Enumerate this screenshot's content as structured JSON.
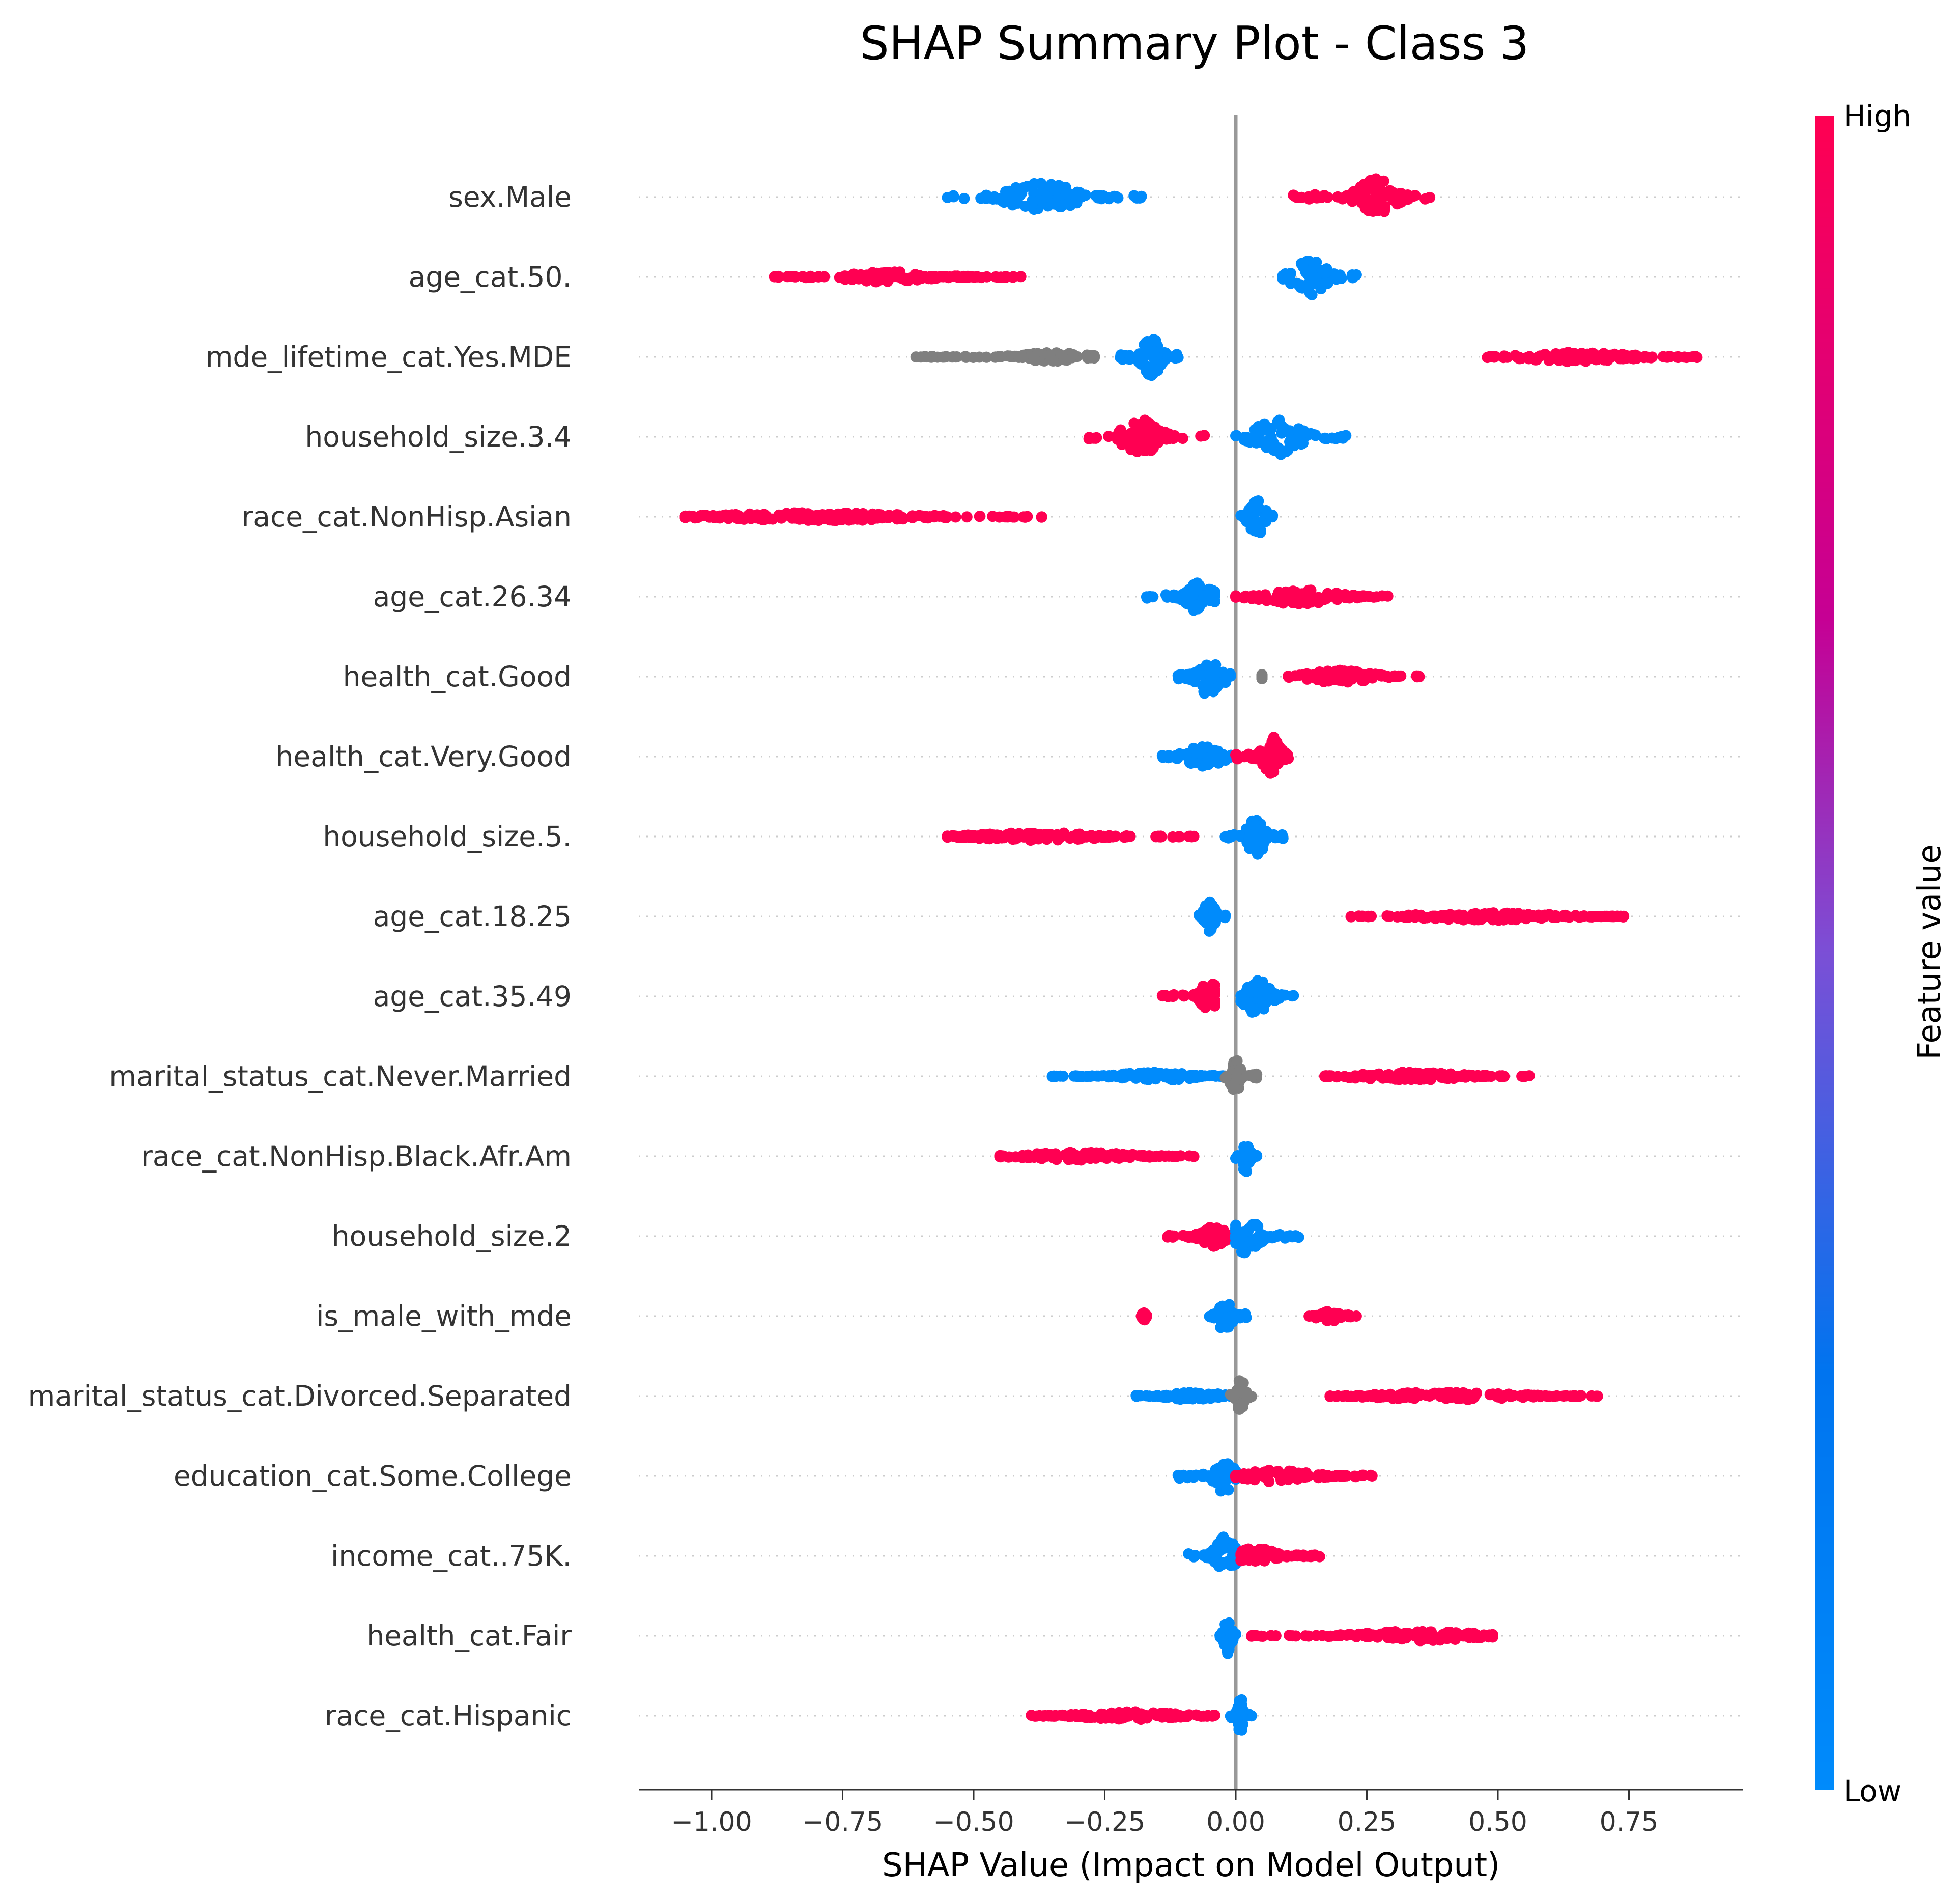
{
  "chart_data": {
    "type": "scatter",
    "subtype": "shap-beeswarm",
    "title": "SHAP Summary Plot - Class 3",
    "xlabel": "SHAP Value (Impact on Model Output)",
    "xlim": [
      -1.15,
      0.97
    ],
    "xticks": [
      -1.0,
      -0.75,
      -0.5,
      -0.25,
      0.0,
      0.25,
      0.5,
      0.75
    ],
    "xtick_labels": [
      "−1.00",
      "−0.75",
      "−0.50",
      "−0.25",
      "0.00",
      "0.25",
      "0.50",
      "0.75"
    ],
    "grid": false,
    "colorbar": {
      "label": "Feature value",
      "high": "High",
      "low": "Low",
      "high_color": "#ff0052",
      "low_color": "#008bfb",
      "gray_color": "#7f7f7f"
    },
    "features": [
      {
        "name": "sex.Male",
        "groups": [
          {
            "value": "low",
            "xmin": -0.55,
            "xmax": -0.18,
            "peak": -0.37,
            "spread": 0.055,
            "width": 0.35
          },
          {
            "value": "high",
            "xmin": 0.11,
            "xmax": 0.37,
            "peak": 0.27,
            "spread": 0.03,
            "width": 0.48
          }
        ]
      },
      {
        "name": "age_cat.50.",
        "groups": [
          {
            "value": "high",
            "xmin": -0.88,
            "xmax": -0.41,
            "peak": -0.66,
            "spread": 0.07,
            "width": 0.13
          },
          {
            "value": "low",
            "xmin": 0.09,
            "xmax": 0.23,
            "peak": 0.14,
            "spread": 0.025,
            "width": 0.5
          }
        ]
      },
      {
        "name": "mde_lifetime_cat.Yes.MDE",
        "groups": [
          {
            "value": "gray",
            "xmin": -0.61,
            "xmax": -0.27,
            "peak": -0.35,
            "spread": 0.05,
            "width": 0.11
          },
          {
            "value": "low",
            "xmin": -0.22,
            "xmax": -0.11,
            "peak": -0.16,
            "spread": 0.015,
            "width": 0.5
          },
          {
            "value": "high",
            "xmin": 0.48,
            "xmax": 0.88,
            "peak": 0.65,
            "spread": 0.08,
            "width": 0.12
          }
        ]
      },
      {
        "name": "household_size.3.4",
        "groups": [
          {
            "value": "high",
            "xmin": -0.28,
            "xmax": -0.06,
            "peak": -0.18,
            "spread": 0.03,
            "width": 0.43
          },
          {
            "value": "low",
            "xmin": 0.0,
            "xmax": 0.21,
            "peak": 0.08,
            "spread": 0.035,
            "width": 0.45
          }
        ]
      },
      {
        "name": "race_cat.NonHisp.Asian",
        "groups": [
          {
            "value": "high",
            "xmin": -1.05,
            "xmax": -0.37,
            "peak": -0.8,
            "spread": 0.15,
            "width": 0.1
          },
          {
            "value": "low",
            "xmin": 0.01,
            "xmax": 0.07,
            "peak": 0.04,
            "spread": 0.012,
            "width": 0.5
          }
        ]
      },
      {
        "name": "age_cat.26.34",
        "groups": [
          {
            "value": "low",
            "xmin": -0.17,
            "xmax": -0.04,
            "peak": -0.07,
            "spread": 0.02,
            "width": 0.42
          },
          {
            "value": "high",
            "xmin": 0.0,
            "xmax": 0.29,
            "peak": 0.12,
            "spread": 0.06,
            "width": 0.18
          }
        ]
      },
      {
        "name": "health_cat.Good",
        "groups": [
          {
            "value": "low",
            "xmin": -0.11,
            "xmax": -0.01,
            "peak": -0.05,
            "spread": 0.02,
            "width": 0.5
          },
          {
            "value": "gray",
            "xmin": 0.05,
            "xmax": 0.05,
            "peak": 0.05,
            "spread": 0.001,
            "width": 0.05
          },
          {
            "value": "high",
            "xmin": 0.1,
            "xmax": 0.35,
            "peak": 0.2,
            "spread": 0.05,
            "width": 0.16
          }
        ]
      },
      {
        "name": "health_cat.Very.Good",
        "groups": [
          {
            "value": "low",
            "xmin": -0.14,
            "xmax": 0.0,
            "peak": -0.06,
            "spread": 0.03,
            "width": 0.26
          },
          {
            "value": "high",
            "xmin": 0.0,
            "xmax": 0.1,
            "peak": 0.07,
            "spread": 0.015,
            "width": 0.5
          }
        ]
      },
      {
        "name": "household_size.5.",
        "groups": [
          {
            "value": "high",
            "xmin": -0.55,
            "xmax": -0.08,
            "peak": -0.38,
            "spread": 0.09,
            "width": 0.1
          },
          {
            "value": "low",
            "xmin": -0.02,
            "xmax": 0.09,
            "peak": 0.04,
            "spread": 0.015,
            "width": 0.47
          }
        ]
      },
      {
        "name": "age_cat.18.25",
        "groups": [
          {
            "value": "low",
            "xmin": -0.07,
            "xmax": -0.02,
            "peak": -0.05,
            "spread": 0.008,
            "width": 0.42
          },
          {
            "value": "high",
            "xmin": 0.22,
            "xmax": 0.74,
            "peak": 0.48,
            "spread": 0.1,
            "width": 0.1
          }
        ]
      },
      {
        "name": "age_cat.35.49",
        "groups": [
          {
            "value": "high",
            "xmin": -0.14,
            "xmax": -0.04,
            "peak": -0.05,
            "spread": 0.012,
            "width": 0.43
          },
          {
            "value": "low",
            "xmin": 0.01,
            "xmax": 0.11,
            "peak": 0.04,
            "spread": 0.02,
            "width": 0.45
          }
        ]
      },
      {
        "name": "marital_status_cat.Never.Married",
        "groups": [
          {
            "value": "low",
            "xmin": -0.35,
            "xmax": -0.02,
            "peak": -0.15,
            "spread": 0.06,
            "width": 0.1
          },
          {
            "value": "gray",
            "xmin": -0.02,
            "xmax": 0.04,
            "peak": 0.0,
            "spread": 0.008,
            "width": 0.45
          },
          {
            "value": "high",
            "xmin": 0.17,
            "xmax": 0.56,
            "peak": 0.33,
            "spread": 0.08,
            "width": 0.1
          }
        ]
      },
      {
        "name": "race_cat.NonHisp.Black.Afr.Am",
        "groups": [
          {
            "value": "high",
            "xmin": -0.45,
            "xmax": -0.08,
            "peak": -0.3,
            "spread": 0.08,
            "width": 0.1
          },
          {
            "value": "low",
            "xmin": 0.0,
            "xmax": 0.04,
            "peak": 0.02,
            "spread": 0.006,
            "width": 0.45
          }
        ]
      },
      {
        "name": "household_size.2",
        "groups": [
          {
            "value": "high",
            "xmin": -0.13,
            "xmax": -0.01,
            "peak": -0.04,
            "spread": 0.02,
            "width": 0.26
          },
          {
            "value": "low",
            "xmin": 0.0,
            "xmax": 0.12,
            "peak": 0.02,
            "spread": 0.02,
            "width": 0.45
          }
        ]
      },
      {
        "name": "is_male_with_mde",
        "groups": [
          {
            "value": "high",
            "xmin": -0.18,
            "xmax": -0.17,
            "peak": -0.175,
            "spread": 0.003,
            "width": 0.1
          },
          {
            "value": "low",
            "xmin": -0.05,
            "xmax": 0.02,
            "peak": -0.02,
            "spread": 0.01,
            "width": 0.45
          },
          {
            "value": "high",
            "xmin": 0.14,
            "xmax": 0.23,
            "peak": 0.18,
            "spread": 0.02,
            "width": 0.12
          }
        ]
      },
      {
        "name": "marital_status_cat.Divorced.Separated",
        "groups": [
          {
            "value": "low",
            "xmin": -0.19,
            "xmax": -0.01,
            "peak": -0.08,
            "spread": 0.04,
            "width": 0.1
          },
          {
            "value": "gray",
            "xmin": -0.01,
            "xmax": 0.03,
            "peak": 0.01,
            "spread": 0.006,
            "width": 0.45
          },
          {
            "value": "high",
            "xmin": 0.18,
            "xmax": 0.69,
            "peak": 0.4,
            "spread": 0.1,
            "width": 0.1
          }
        ]
      },
      {
        "name": "education_cat.Some.College",
        "groups": [
          {
            "value": "low",
            "xmin": -0.11,
            "xmax": 0.0,
            "peak": -0.02,
            "spread": 0.015,
            "width": 0.45
          },
          {
            "value": "high",
            "xmin": 0.0,
            "xmax": 0.26,
            "peak": 0.08,
            "spread": 0.05,
            "width": 0.15
          }
        ]
      },
      {
        "name": "income_cat..75K.",
        "groups": [
          {
            "value": "low",
            "xmin": -0.09,
            "xmax": 0.0,
            "peak": -0.02,
            "spread": 0.015,
            "width": 0.5
          },
          {
            "value": "high",
            "xmin": 0.01,
            "xmax": 0.16,
            "peak": 0.04,
            "spread": 0.03,
            "width": 0.2
          }
        ]
      },
      {
        "name": "health_cat.Fair",
        "groups": [
          {
            "value": "low",
            "xmin": -0.03,
            "xmax": 0.0,
            "peak": -0.015,
            "spread": 0.006,
            "width": 0.45
          },
          {
            "value": "high",
            "xmin": 0.03,
            "xmax": 0.49,
            "peak": 0.35,
            "spread": 0.09,
            "width": 0.12
          }
        ]
      },
      {
        "name": "race_cat.Hispanic",
        "groups": [
          {
            "value": "high",
            "xmin": -0.39,
            "xmax": -0.04,
            "peak": -0.2,
            "spread": 0.07,
            "width": 0.1
          },
          {
            "value": "low",
            "xmin": -0.01,
            "xmax": 0.03,
            "peak": 0.01,
            "spread": 0.006,
            "width": 0.43
          }
        ]
      }
    ]
  }
}
